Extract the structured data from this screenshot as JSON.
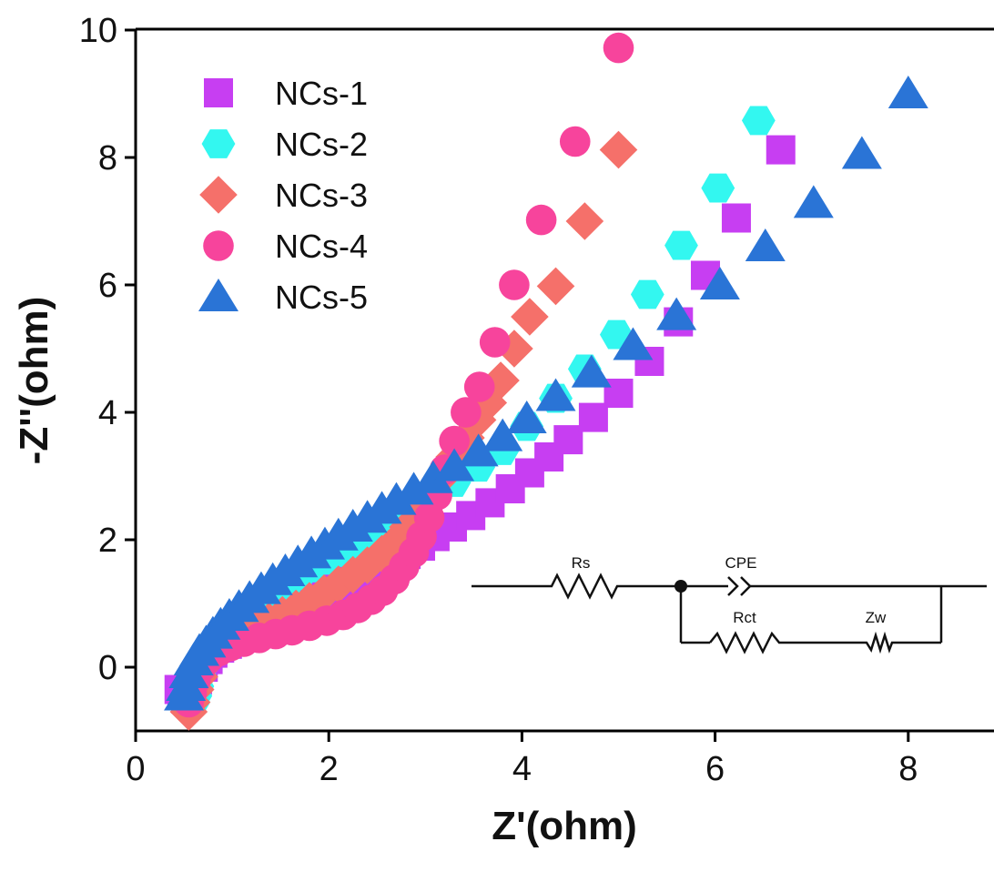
{
  "chart_data": {
    "type": "scatter",
    "title": "",
    "xlabel": "Z'(ohm)",
    "ylabel": "-Z''(ohm)",
    "xlim": [
      0,
      8.9
    ],
    "ylim": [
      -1,
      10
    ],
    "xticks": [
      "0",
      "2",
      "4",
      "6",
      "8"
    ],
    "yticks": [
      "0",
      "2",
      "4",
      "6",
      "8",
      "10"
    ],
    "grid": false,
    "legend_position": "top-left",
    "series": [
      {
        "name": "NCs-1",
        "marker": "square",
        "color": "#c73ef2",
        "x": [
          0.45,
          0.48,
          0.52,
          0.58,
          0.64,
          0.7,
          0.75,
          0.8,
          0.87,
          0.95,
          1.03,
          1.12,
          1.22,
          1.33,
          1.45,
          1.57,
          1.7,
          1.82,
          1.95,
          2.08,
          2.22,
          2.36,
          2.5,
          2.65,
          2.8,
          2.95,
          3.1,
          3.28,
          3.47,
          3.67,
          3.88,
          4.08,
          4.28,
          4.48,
          4.74,
          5.0,
          5.32,
          5.62,
          5.9,
          6.22,
          6.68
        ],
        "y": [
          -0.35,
          -0.45,
          -0.5,
          -0.4,
          -0.2,
          0.0,
          0.12,
          0.22,
          0.3,
          0.36,
          0.42,
          0.5,
          0.58,
          0.66,
          0.76,
          0.86,
          0.96,
          1.06,
          1.16,
          1.26,
          1.36,
          1.45,
          1.55,
          1.65,
          1.77,
          1.9,
          2.05,
          2.2,
          2.38,
          2.58,
          2.8,
          3.05,
          3.3,
          3.57,
          3.92,
          4.3,
          4.8,
          5.42,
          6.15,
          7.05,
          8.12
        ]
      },
      {
        "name": "NCs-2",
        "marker": "hexagon",
        "color": "#33f7f0",
        "x": [
          0.6,
          0.62,
          0.64,
          0.66,
          0.7,
          0.76,
          0.83,
          0.9,
          0.98,
          1.06,
          1.15,
          1.25,
          1.35,
          1.46,
          1.58,
          1.7,
          1.82,
          1.95,
          2.08,
          2.22,
          2.37,
          2.53,
          2.7,
          2.88,
          3.08,
          3.3,
          3.55,
          3.8,
          4.05,
          4.35,
          4.65,
          4.98,
          5.3,
          5.65,
          6.03,
          6.45
        ],
        "y": [
          -0.55,
          -0.45,
          -0.3,
          -0.1,
          0.05,
          0.18,
          0.32,
          0.45,
          0.58,
          0.7,
          0.83,
          0.96,
          1.08,
          1.2,
          1.32,
          1.44,
          1.56,
          1.68,
          1.8,
          1.92,
          2.05,
          2.19,
          2.34,
          2.5,
          2.68,
          2.9,
          3.14,
          3.4,
          3.78,
          4.22,
          4.68,
          5.22,
          5.85,
          6.62,
          7.52,
          8.58
        ]
      },
      {
        "name": "NCs-3",
        "marker": "diamond",
        "color": "#f5706a",
        "x": [
          0.55,
          0.58,
          0.62,
          0.66,
          0.72,
          0.8,
          0.9,
          1.0,
          1.12,
          1.25,
          1.38,
          1.52,
          1.66,
          1.8,
          1.95,
          2.1,
          2.25,
          2.4,
          2.55,
          2.7,
          2.82,
          2.94,
          3.05,
          3.18,
          3.3,
          3.42,
          3.54,
          3.65,
          3.78,
          3.92,
          4.08,
          4.35,
          4.65,
          5.0
        ],
        "y": [
          -0.7,
          -0.55,
          -0.35,
          -0.15,
          0.05,
          0.2,
          0.32,
          0.42,
          0.52,
          0.62,
          0.72,
          0.82,
          0.92,
          1.04,
          1.16,
          1.3,
          1.45,
          1.6,
          1.78,
          1.98,
          2.2,
          2.45,
          2.72,
          3.0,
          3.3,
          3.6,
          3.88,
          4.15,
          4.5,
          5.0,
          5.5,
          5.98,
          7.0,
          8.12
        ]
      },
      {
        "name": "NCs-4",
        "marker": "circle",
        "color": "#f7449c",
        "x": [
          0.55,
          0.58,
          0.62,
          0.68,
          0.76,
          0.86,
          0.98,
          1.12,
          1.28,
          1.45,
          1.62,
          1.8,
          1.98,
          2.15,
          2.3,
          2.44,
          2.56,
          2.68,
          2.78,
          2.88,
          2.96,
          3.04,
          3.12,
          3.2,
          3.3,
          3.42,
          3.56,
          3.72,
          3.92,
          4.2,
          4.55,
          5.0
        ],
        "y": [
          -0.55,
          -0.4,
          -0.2,
          0.0,
          0.15,
          0.25,
          0.33,
          0.4,
          0.46,
          0.52,
          0.58,
          0.65,
          0.73,
          0.82,
          0.93,
          1.06,
          1.2,
          1.38,
          1.58,
          1.8,
          2.05,
          2.35,
          2.7,
          3.1,
          3.55,
          4.0,
          4.4,
          5.1,
          6.0,
          7.02,
          8.25,
          9.72
        ]
      },
      {
        "name": "NCs-5",
        "marker": "triangle",
        "color": "#2a74d6",
        "x": [
          0.5,
          0.52,
          0.55,
          0.6,
          0.66,
          0.73,
          0.8,
          0.88,
          0.97,
          1.07,
          1.18,
          1.3,
          1.42,
          1.55,
          1.68,
          1.82,
          1.96,
          2.1,
          2.25,
          2.4,
          2.55,
          2.7,
          2.88,
          3.08,
          3.3,
          3.55,
          3.8,
          4.05,
          4.35,
          4.72,
          5.15,
          5.6,
          6.05,
          6.52,
          7.02,
          7.52,
          8.0
        ],
        "y": [
          -0.45,
          -0.3,
          -0.1,
          0.1,
          0.25,
          0.38,
          0.52,
          0.66,
          0.8,
          0.94,
          1.08,
          1.22,
          1.36,
          1.5,
          1.64,
          1.78,
          1.92,
          2.06,
          2.2,
          2.34,
          2.48,
          2.62,
          2.78,
          2.96,
          3.15,
          3.38,
          3.62,
          3.9,
          4.25,
          4.62,
          5.05,
          5.52,
          6.0,
          6.6,
          7.28,
          8.05,
          9.0
        ]
      }
    ]
  },
  "circuit": {
    "labels": {
      "rs": "Rs",
      "cpe": "CPE",
      "rct": "Rct",
      "zw": "Zw"
    }
  }
}
